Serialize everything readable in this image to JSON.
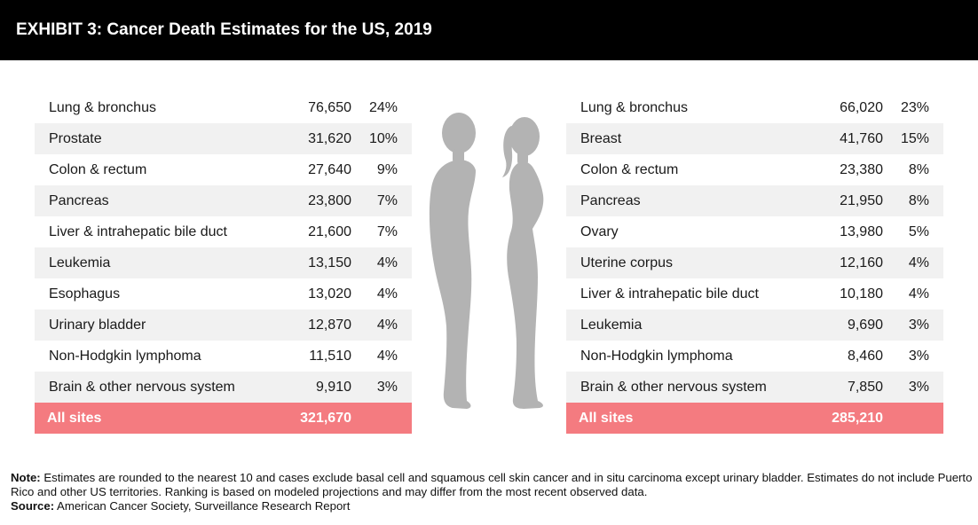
{
  "title": "EXHIBIT 3: Cancer Death Estimates for the US, 2019",
  "male": {
    "rows": [
      {
        "site": "Lung & bronchus",
        "deaths": "76,650",
        "pct": "24%"
      },
      {
        "site": "Prostate",
        "deaths": "31,620",
        "pct": "10%"
      },
      {
        "site": "Colon & rectum",
        "deaths": "27,640",
        "pct": "9%"
      },
      {
        "site": "Pancreas",
        "deaths": "23,800",
        "pct": "7%"
      },
      {
        "site": "Liver & intrahepatic bile duct",
        "deaths": "21,600",
        "pct": "7%"
      },
      {
        "site": "Leukemia",
        "deaths": "13,150",
        "pct": "4%"
      },
      {
        "site": "Esophagus",
        "deaths": "13,020",
        "pct": "4%"
      },
      {
        "site": "Urinary bladder",
        "deaths": "12,870",
        "pct": "4%"
      },
      {
        "site": "Non-Hodgkin lymphoma",
        "deaths": "11,510",
        "pct": "4%"
      },
      {
        "site": "Brain & other nervous system",
        "deaths": "9,910",
        "pct": "3%"
      }
    ],
    "total": {
      "label": "All sites",
      "deaths": "321,670"
    }
  },
  "female": {
    "rows": [
      {
        "site": "Lung & bronchus",
        "deaths": "66,020",
        "pct": "23%"
      },
      {
        "site": "Breast",
        "deaths": "41,760",
        "pct": "15%"
      },
      {
        "site": "Colon & rectum",
        "deaths": "23,380",
        "pct": "8%"
      },
      {
        "site": "Pancreas",
        "deaths": "21,950",
        "pct": "8%"
      },
      {
        "site": "Ovary",
        "deaths": "13,980",
        "pct": "5%"
      },
      {
        "site": "Uterine corpus",
        "deaths": "12,160",
        "pct": "4%"
      },
      {
        "site": "Liver & intrahepatic bile duct",
        "deaths": "10,180",
        "pct": "4%"
      },
      {
        "site": "Leukemia",
        "deaths": "9,690",
        "pct": "3%"
      },
      {
        "site": "Non-Hodgkin lymphoma",
        "deaths": "8,460",
        "pct": "3%"
      },
      {
        "site": "Brain & other nervous system",
        "deaths": "7,850",
        "pct": "3%"
      }
    ],
    "total": {
      "label": "All sites",
      "deaths": "285,210"
    }
  },
  "footnote": {
    "note_label": "Note:",
    "note_text": " Estimates are rounded to the nearest 10 and cases exclude basal cell and squamous cell skin cancer and in situ carcinoma except urinary bladder. Estimates do not include Puerto Rico and other US territories. Ranking is based on modeled projections and may differ from the most recent observed data.",
    "source_label": "Source:",
    "source_text": " American Cancer Society, Surveillance Research Report"
  },
  "colors": {
    "header_bg": "#000000",
    "total_bg": "#f47b80",
    "figure": "#b3b3b3",
    "stripe": "#f1f1f1"
  },
  "icons": {
    "male": "male-silhouette-icon",
    "female": "female-silhouette-icon"
  }
}
